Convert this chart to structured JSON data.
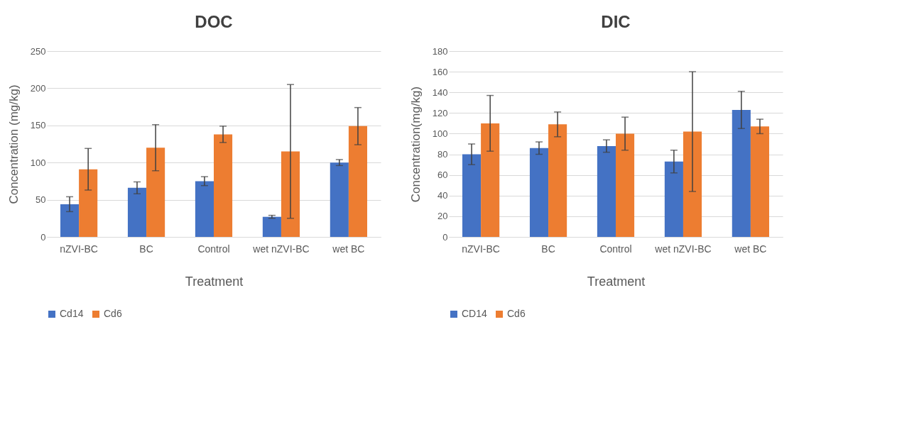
{
  "chart_data": [
    {
      "type": "bar",
      "title": "DOC",
      "xlabel": "Treatment",
      "ylabel": "Concentration (mg/kg)",
      "categories": [
        "nZVI-BC",
        "BC",
        "Control",
        "wet nZVI-BC",
        "wet BC"
      ],
      "series": [
        {
          "name": "Cd14",
          "color": "#4472c4",
          "values": [
            44,
            66,
            75,
            27,
            100
          ],
          "errors": [
            10,
            8,
            6,
            2,
            4
          ]
        },
        {
          "name": "Cd6",
          "color": "#ed7d31",
          "values": [
            91,
            120,
            138,
            115,
            149
          ],
          "errors": [
            28,
            31,
            11,
            90,
            25
          ]
        }
      ],
      "ylim": [
        0,
        250
      ],
      "yticks": [
        0,
        50,
        100,
        150,
        200,
        250
      ],
      "grid": "y",
      "legend": "bottom"
    },
    {
      "type": "bar",
      "title": "DIC",
      "xlabel": "Treatment",
      "ylabel": "Concentration(mg/kg)",
      "categories": [
        "nZVI-BC",
        "BC",
        "Control",
        "wet nZVI-BC",
        "wet BC"
      ],
      "series": [
        {
          "name": "CD14",
          "color": "#4472c4",
          "values": [
            80,
            86,
            88,
            73,
            123
          ],
          "errors": [
            10,
            6,
            6,
            11,
            18
          ]
        },
        {
          "name": "Cd6",
          "color": "#ed7d31",
          "values": [
            110,
            109,
            100,
            102,
            107
          ],
          "errors": [
            27,
            12,
            16,
            58,
            7
          ]
        }
      ],
      "ylim": [
        0,
        180
      ],
      "yticks": [
        0,
        20,
        40,
        60,
        80,
        100,
        120,
        140,
        160,
        180
      ],
      "grid": "y",
      "legend": "bottom"
    }
  ]
}
